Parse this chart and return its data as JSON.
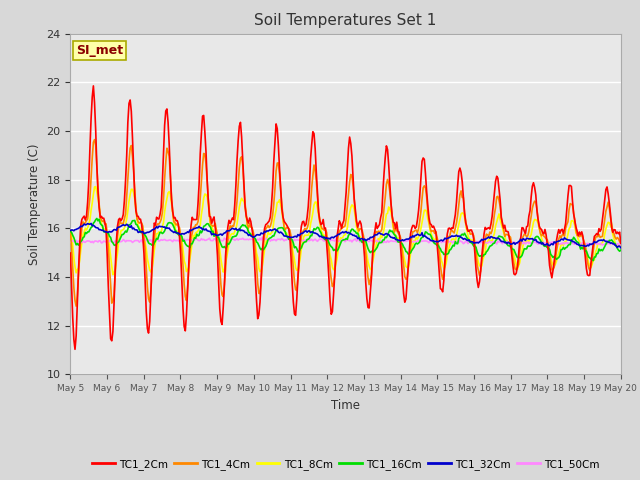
{
  "title": "Soil Temperatures Set 1",
  "xlabel": "Time",
  "ylabel": "Soil Temperature (C)",
  "ylim": [
    10,
    24
  ],
  "yticks": [
    10,
    12,
    14,
    16,
    18,
    20,
    22,
    24
  ],
  "background_color": "#d8d8d8",
  "plot_bg_color": "#e8e8e8",
  "annotation_text": "SI_met",
  "annotation_color": "#8b0000",
  "annotation_bg": "#ffffaa",
  "annotation_border": "#aaaa00",
  "line_colors": {
    "TC1_2Cm": "#ff0000",
    "TC1_4Cm": "#ff8800",
    "TC1_8Cm": "#ffff00",
    "TC1_16Cm": "#00dd00",
    "TC1_32Cm": "#0000cc",
    "TC1_50Cm": "#ff88ff"
  },
  "legend_labels": [
    "TC1_2Cm",
    "TC1_4Cm",
    "TC1_8Cm",
    "TC1_16Cm",
    "TC1_32Cm",
    "TC1_50Cm"
  ],
  "xtick_labels": [
    "May 5",
    "May 6",
    "May 7",
    "May 8",
    "May 9",
    "May 10",
    "May 11",
    "May 12",
    "May 13",
    "May 14",
    "May 15",
    "May 16",
    "May 17",
    "May 18",
    "May 19",
    "May 20"
  ],
  "n_points": 480
}
